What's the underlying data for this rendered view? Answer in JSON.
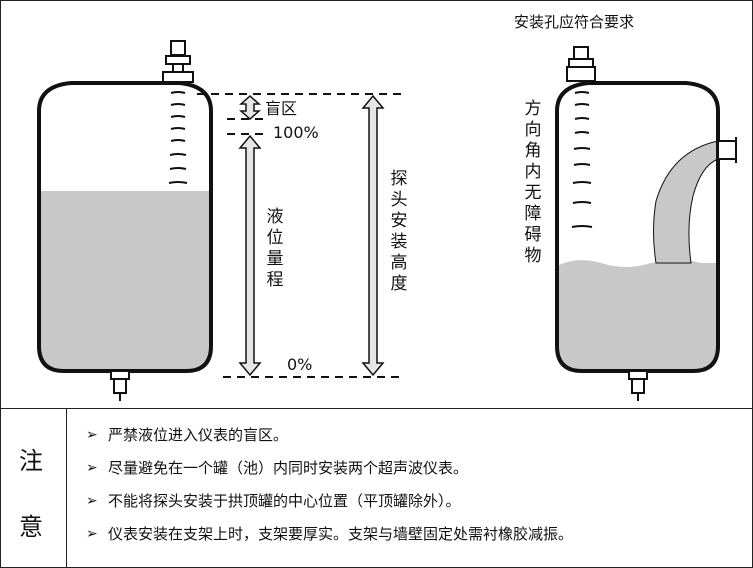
{
  "diagram": {
    "right_top_label": "安装孔应符合要求",
    "blind_zone_label": "盲区",
    "full_label": "100%",
    "empty_label": "0%",
    "level_range_label": "液位量程",
    "probe_height_label": "探头安装高度",
    "no_obstacle_label": "方向角内无障碍物"
  },
  "notes": {
    "heading_chars": [
      "注",
      "意"
    ],
    "items": [
      "严禁液位进入仪表的盲区。",
      "尽量避免在一个罐（池）内同时安装两个超声波仪表。",
      "不能将探头安装于拱顶罐的中心位置（平顶罐除外）。",
      "仪表安装在支架上时，支架要厚实。支架与墙壁固定处需衬橡胶减振。"
    ],
    "bullet": "➢"
  },
  "colors": {
    "liquid": "#c8c8c8",
    "line": "#111111",
    "arrow_fill": "#e6e6e6"
  }
}
